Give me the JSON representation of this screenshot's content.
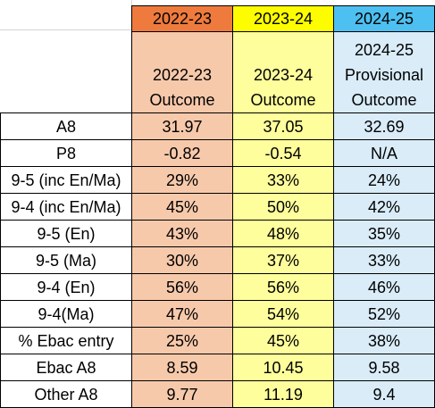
{
  "colors": {
    "header_2022": "#ee7b3d",
    "header_2023": "#fdfd00",
    "header_2024": "#4dc0f1",
    "body_2022": "#f7c9ab",
    "body_2023": "#fefe9c",
    "body_2024": "#d9ecf8"
  },
  "headers": [
    "2022-23",
    "2023-24",
    "2024-25"
  ],
  "subheaders": [
    [
      "2022-23",
      "Outcome"
    ],
    [
      "2023-24",
      "Outcome"
    ],
    [
      "2024-25",
      "Provisional",
      "Outcome"
    ]
  ],
  "rows": [
    {
      "label": "A8",
      "values": [
        "31.97",
        "37.05",
        "32.69"
      ]
    },
    {
      "label": "P8",
      "values": [
        "-0.82",
        "-0.54",
        "N/A"
      ]
    },
    {
      "label": "9-5 (inc En/Ma)",
      "values": [
        "29%",
        "33%",
        "24%"
      ]
    },
    {
      "label": "9-4 (inc En/Ma)",
      "values": [
        "45%",
        "50%",
        "42%"
      ]
    },
    {
      "label": "9-5 (En)",
      "values": [
        "43%",
        "48%",
        "35%"
      ]
    },
    {
      "label": "9-5 (Ma)",
      "values": [
        "30%",
        "37%",
        "33%"
      ]
    },
    {
      "label": "9-4 (En)",
      "values": [
        "56%",
        "56%",
        "46%"
      ]
    },
    {
      "label": "9-4(Ma)",
      "values": [
        "47%",
        "54%",
        "52%"
      ]
    },
    {
      "label": "% Ebac entry",
      "values": [
        "25%",
        "45%",
        "38%"
      ]
    },
    {
      "label": "Ebac A8",
      "values": [
        "8.59",
        "10.45",
        "9.58"
      ]
    },
    {
      "label": "Other A8",
      "values": [
        "9.77",
        "11.19",
        "9.4"
      ]
    }
  ]
}
